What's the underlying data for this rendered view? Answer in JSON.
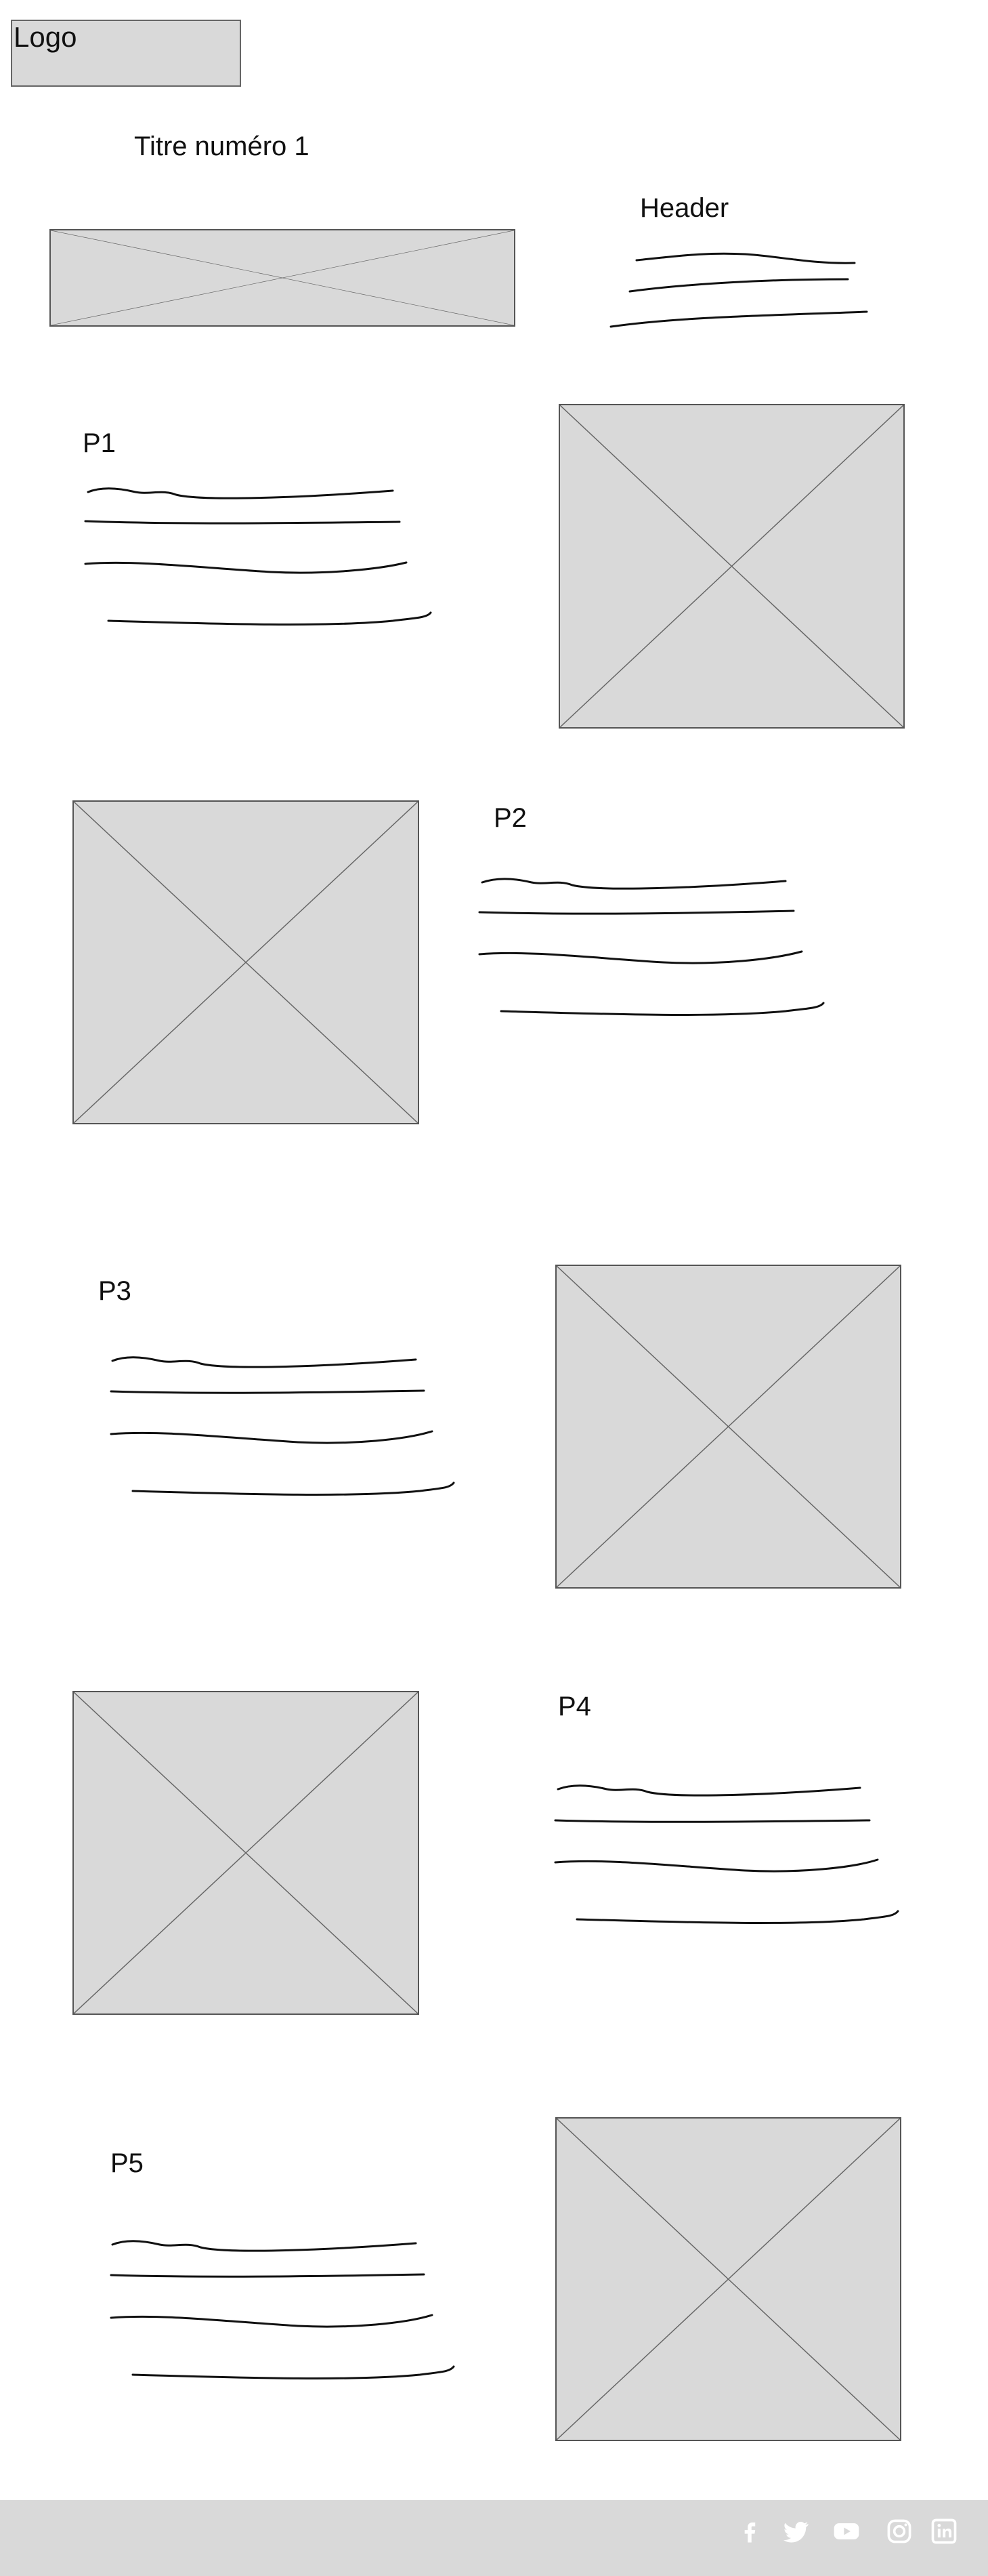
{
  "header": {
    "logo": "Logo",
    "title": "Titre numéro 1",
    "header_label": "Header"
  },
  "sections": [
    {
      "label": "P1"
    },
    {
      "label": "P2"
    },
    {
      "label": "P3"
    },
    {
      "label": "P4"
    },
    {
      "label": "P5"
    }
  ],
  "footer": {
    "social_icons": [
      "facebook-icon",
      "twitter-icon",
      "youtube-icon",
      "instagram-icon",
      "linkedin-icon"
    ],
    "icon_color": "#ffffff",
    "background": "#d9d9d9"
  }
}
